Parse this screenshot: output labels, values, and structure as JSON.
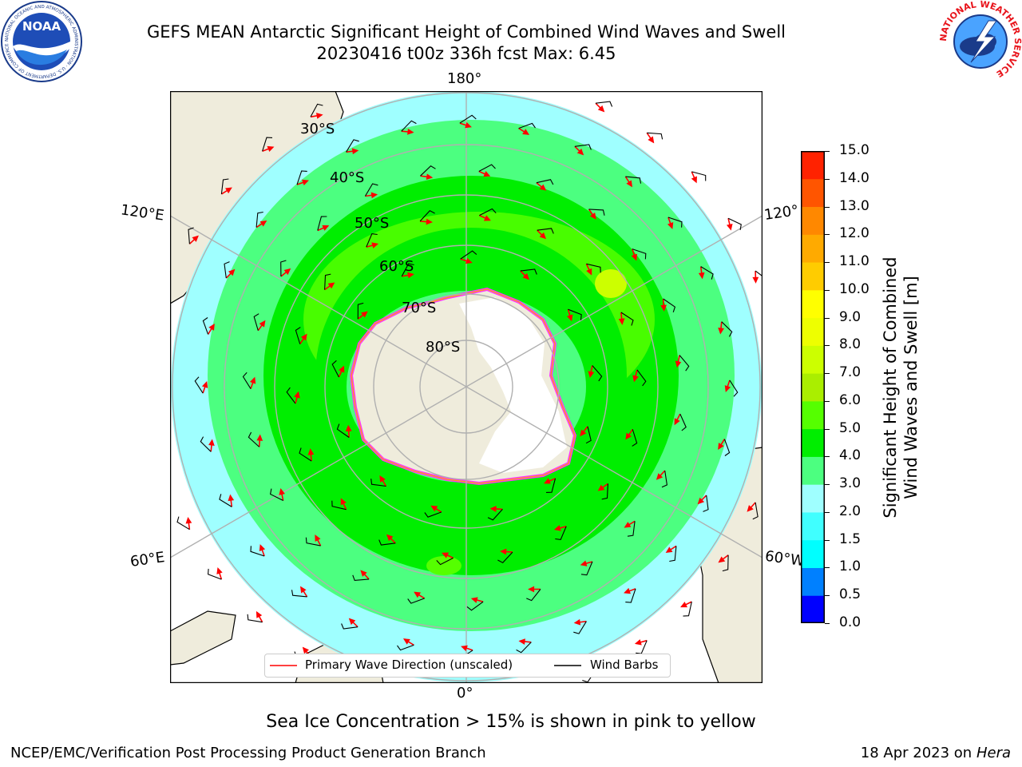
{
  "header": {
    "title_line1": "GEFS MEAN Antarctic Significant Height of Combined Wind Waves and Swell",
    "title_line2": "20230416 t00z 336h fcst   Max: 6.45"
  },
  "logos": {
    "left": {
      "name": "noaa-logo",
      "text": "NOAA",
      "ring_text": "NATIONAL OCEANIC AND ATMOSPHERIC ADMINISTRATION · U.S. DEPARTMENT OF COMMERCE"
    },
    "right": {
      "name": "nws-logo",
      "ring_text": "NATIONAL WEATHER SERVICE"
    }
  },
  "map": {
    "projection": "south polar stereographic",
    "meridian_labels": {
      "top": "180°",
      "bottom": "0°",
      "upper_left": "120°E",
      "upper_right": "120°",
      "lower_left": "60°E",
      "lower_right": "60°W"
    },
    "latitude_labels": [
      "30°S",
      "40°S",
      "50°S",
      "60°S",
      "70°S",
      "80°S"
    ],
    "colors": {
      "land": "#efecdc",
      "ice_sheet": "#ffffff",
      "grid": "#b0b0b0",
      "arrow": "#ff0000",
      "barb": "#000000",
      "ice_edge": "#ff33ff"
    }
  },
  "colorbar": {
    "label_line1": "Significant Height of Combined",
    "label_line2": "Wind Waves and Swell [m]",
    "levels": [
      "0.0",
      "0.5",
      "1.0",
      "1.5",
      "2.0",
      "3.0",
      "4.0",
      "5.0",
      "6.0",
      "7.0",
      "8.0",
      "9.0",
      "10.0",
      "11.0",
      "12.0",
      "13.0",
      "14.0",
      "15.0"
    ],
    "colors": [
      "#0000ff",
      "#0080ff",
      "#00ffff",
      "#40ffff",
      "#9fffff",
      "#4cff80",
      "#00ee00",
      "#55ff00",
      "#aaee00",
      "#ccff00",
      "#eeff00",
      "#ffff00",
      "#ffcc00",
      "#ffaa00",
      "#ff8800",
      "#ff5500",
      "#ff2200"
    ]
  },
  "legend": {
    "primary_wave_label": "Primary Wave Direction (unscaled)",
    "wind_barbs_label": "Wind Barbs"
  },
  "note": "Sea Ice Concentration > 15% is shown in pink to yellow",
  "footer": {
    "left": "NCEP/EMC/Verification Post Processing Product Generation Branch",
    "right_prefix": "18 Apr 2023 on ",
    "right_host": "Hera"
  }
}
